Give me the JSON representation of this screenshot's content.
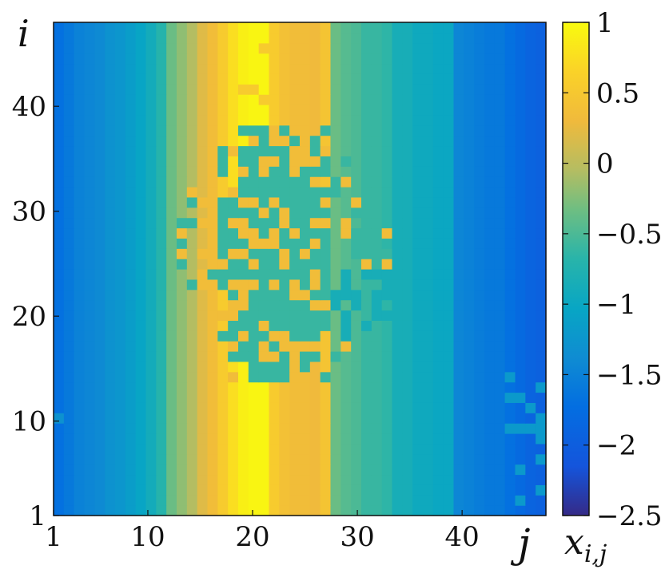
{
  "chart_data": {
    "type": "heatmap",
    "title": "",
    "xlabel": "j",
    "ylabel": "i",
    "colorbar_label": "x_{i,j}",
    "x_range": [
      1,
      48
    ],
    "y_range": [
      1,
      48
    ],
    "x_ticks": [
      "1",
      "10",
      "20",
      "30",
      "40"
    ],
    "x_tick_values": [
      1,
      10,
      20,
      30,
      40
    ],
    "y_ticks": [
      "1",
      "10",
      "20",
      "30",
      "40"
    ],
    "y_tick_values": [
      1,
      10,
      20,
      30,
      40
    ],
    "color_range": [
      -2.5,
      1
    ],
    "colorbar_ticks": [
      "1",
      "0.5",
      "0",
      "−0.5",
      "−1",
      "−1.5",
      "−2",
      "−2.5"
    ],
    "colorbar_tick_values": [
      1,
      0.5,
      0,
      -0.5,
      -1,
      -1.5,
      -2,
      -2.5
    ],
    "colormap": "parula",
    "column_profile": [
      -1.7,
      -1.6,
      -1.5,
      -1.45,
      -1.4,
      -1.3,
      -1.25,
      -1.15,
      -1.05,
      -0.9,
      -0.7,
      -0.35,
      -0.2,
      -0.05,
      0.2,
      0.35,
      0.55,
      0.75,
      0.9,
      0.95,
      0.95,
      0.55,
      0.4,
      0.35,
      0.35,
      0.3,
      0.45,
      -0.35,
      -0.45,
      -0.5,
      -0.6,
      -0.6,
      -0.65,
      -0.85,
      -0.85,
      -0.95,
      -0.95,
      -1.0,
      -1.0,
      -1.45,
      -1.5,
      -1.55,
      -1.6,
      -1.6,
      -1.7,
      -1.8,
      -1.9,
      -1.95
    ],
    "notes": "Central region rows ~14-38 contains a mixed pattern of ~0.35 (orange) and ~-0.6 (green) cells between columns 14-33; columns 46-48 rows 2-18 show scattered -1.2 (teal) cells among -1.9 (blue)."
  }
}
